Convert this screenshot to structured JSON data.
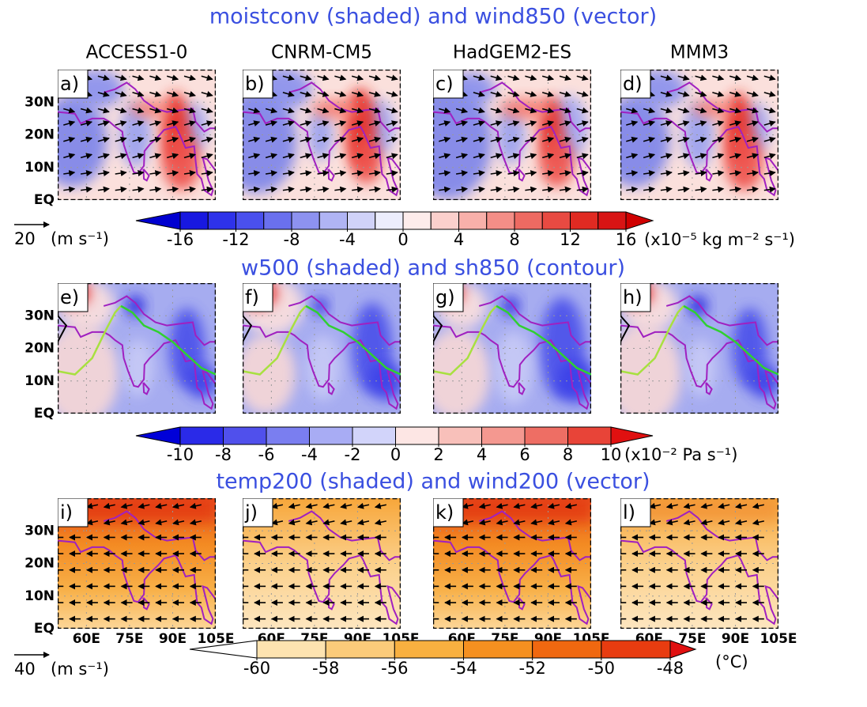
{
  "columns": [
    "ACCESS1-0",
    "CNRM-CM5",
    "HadGEM2-ES",
    "MMM3"
  ],
  "lon_range": [
    50,
    105
  ],
  "lat_range": [
    0,
    40
  ],
  "lon_ticks": [
    {
      "value": 60,
      "label": "60E"
    },
    {
      "value": 75,
      "label": "75E"
    },
    {
      "value": 90,
      "label": "90E"
    },
    {
      "value": 105,
      "label": "105E"
    }
  ],
  "lat_ticks": [
    {
      "value": 30,
      "label": "30N"
    },
    {
      "value": 20,
      "label": "20N"
    },
    {
      "value": 10,
      "label": "10N"
    },
    {
      "value": 0,
      "label": "EQ"
    }
  ],
  "rows": [
    {
      "title": "moistconv (shaded) and wind850 (vector)",
      "panels": [
        "a)",
        "b)",
        "c)",
        "d)"
      ],
      "reference_vector": {
        "value": 20,
        "unit": "(m s⁻¹)"
      },
      "colorbar": {
        "range": [
          -16,
          16
        ],
        "ticks": [
          -16,
          -12,
          -8,
          -4,
          0,
          4,
          8,
          12,
          16
        ],
        "unit": "(x10⁻⁵ kg m⁻² s⁻¹)",
        "colors": [
          "#0000d0",
          "#1818e0",
          "#2e32ea",
          "#4a50ee",
          "#6a70ee",
          "#8d92f0",
          "#b0b4f4",
          "#d0d2f8",
          "#ecedfc",
          "#fdeceb",
          "#fbd0cc",
          "#f8b0aa",
          "#f48e87",
          "#ee6a62",
          "#e84a42",
          "#e02a22",
          "#d81414",
          "#d00000"
        ]
      }
    },
    {
      "title": "w500 (shaded) and sh850 (contour)",
      "panels": [
        "e)",
        "f)",
        "g)",
        "h)"
      ],
      "colorbar": {
        "range": [
          -10,
          10
        ],
        "ticks": [
          -10,
          -8,
          -6,
          -4,
          -2,
          0,
          2,
          4,
          6,
          8,
          10
        ],
        "unit": "(x10⁻² Pa s⁻¹)",
        "colors": [
          "#0000d8",
          "#2a2ae8",
          "#5050ec",
          "#7a7ef0",
          "#a8acf4",
          "#d2d4fa",
          "#fde6e4",
          "#f8c0ba",
          "#f49890",
          "#ee6e64",
          "#e84438",
          "#e01010"
        ]
      }
    },
    {
      "title": "temp200 (shaded) and wind200 (vector)",
      "panels": [
        "i)",
        "j)",
        "k)",
        "l)"
      ],
      "reference_vector": {
        "value": 40,
        "unit": "(m s⁻¹)"
      },
      "colorbar": {
        "range": [
          -60,
          -48
        ],
        "ticks": [
          -60,
          -58,
          -56,
          -54,
          -52,
          -50,
          -48
        ],
        "unit": "(°C)",
        "colors": [
          "#ffffff",
          "#fde3b0",
          "#fbcb7a",
          "#f8b040",
          "#f59020",
          "#f06810",
          "#e83c10",
          "#e01010"
        ]
      }
    }
  ]
}
